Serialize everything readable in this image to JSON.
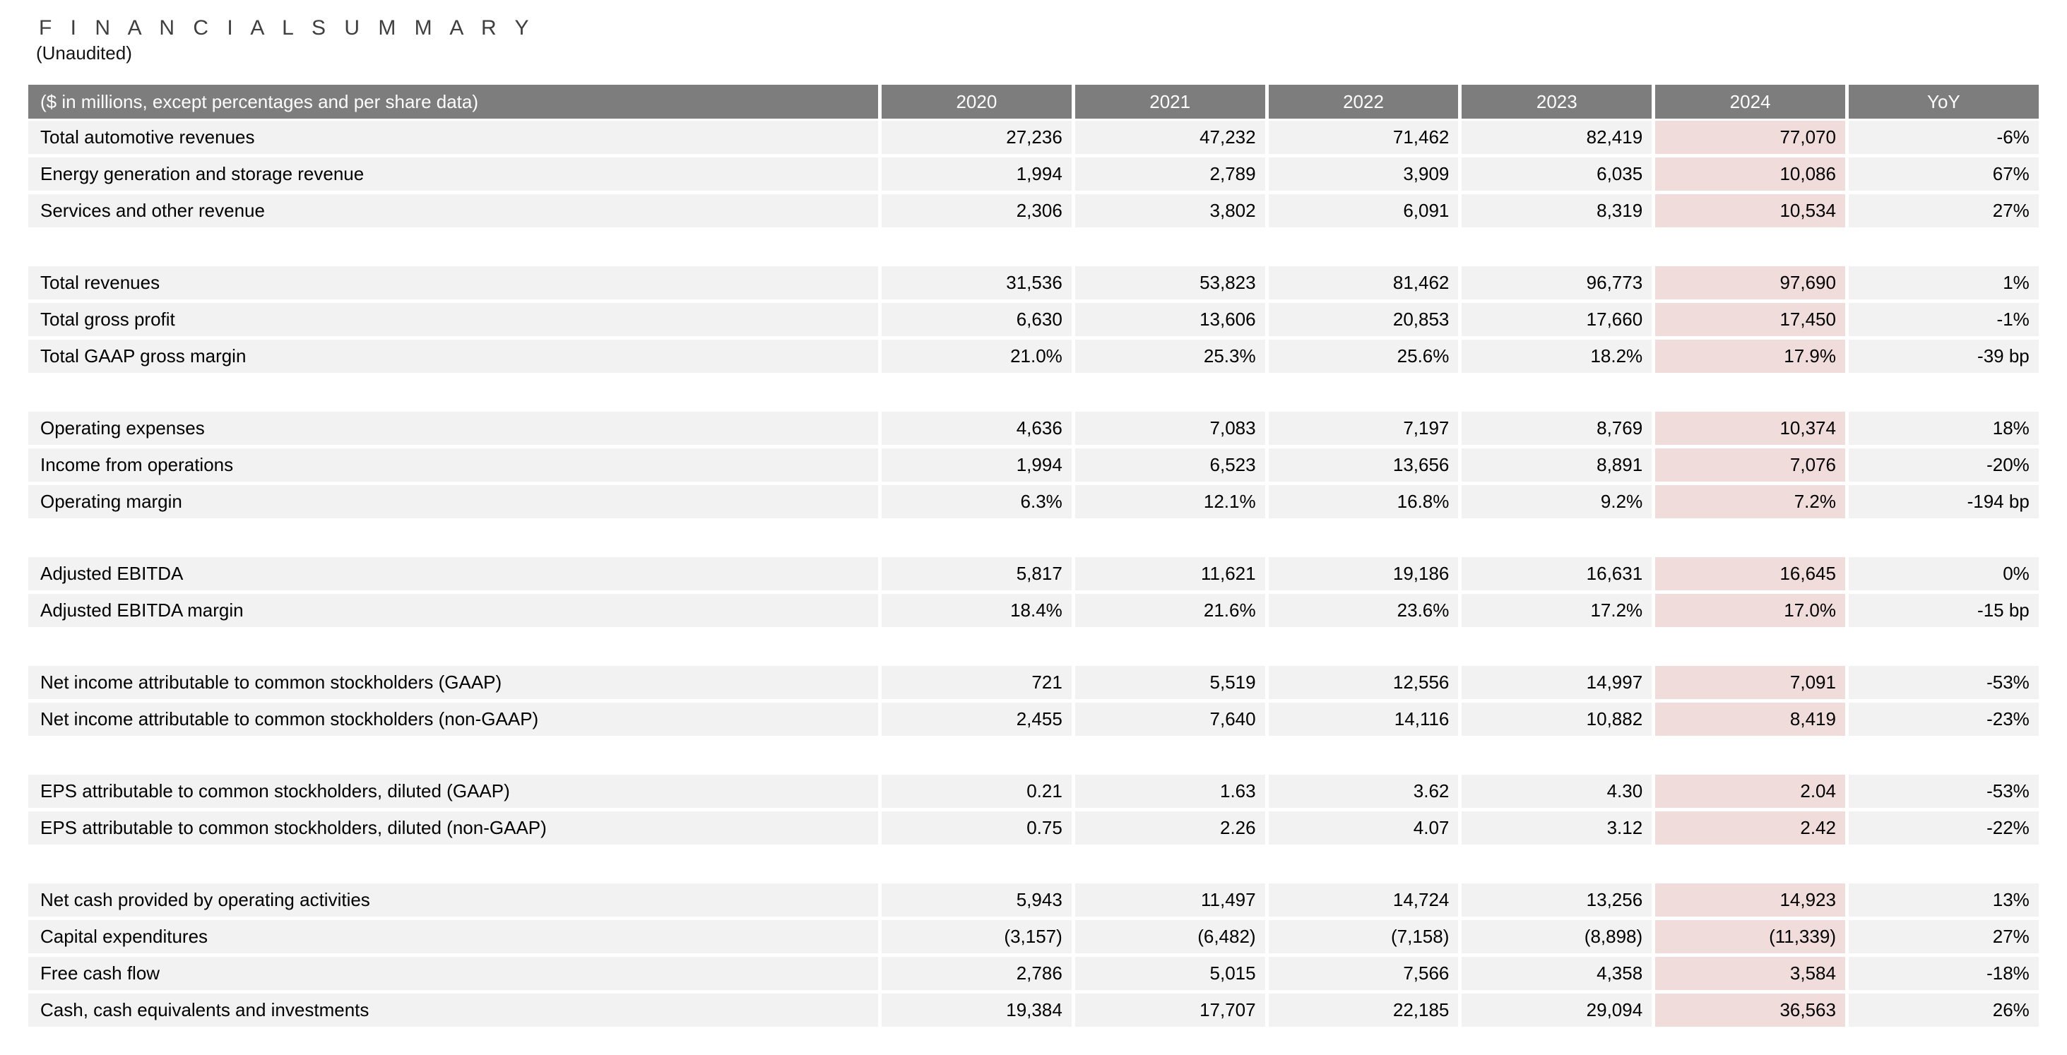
{
  "title": "F I N A N C I A L   S U M M A R Y",
  "subtitle": "(Unaudited)",
  "table": {
    "header_label": "($ in millions, except percentages and per share data)",
    "columns": [
      "2020",
      "2021",
      "2022",
      "2023",
      "2024",
      "YoY"
    ],
    "highlight_column": "2024",
    "colors": {
      "header_bg": "#7d7d7d",
      "header_text": "#ffffff",
      "row_bg": "#f2f2f2",
      "highlight_bg": "#f0dcda",
      "text": "#000000"
    },
    "sections": [
      {
        "rows": [
          {
            "label": "Total automotive revenues",
            "values": [
              "27,236",
              "47,232",
              "71,462",
              "82,419",
              "77,070",
              "-6%"
            ]
          },
          {
            "label": "Energy generation and storage revenue",
            "values": [
              "1,994",
              "2,789",
              "3,909",
              "6,035",
              "10,086",
              "67%"
            ]
          },
          {
            "label": "Services and other revenue",
            "values": [
              "2,306",
              "3,802",
              "6,091",
              "8,319",
              "10,534",
              "27%"
            ]
          }
        ]
      },
      {
        "rows": [
          {
            "label": "Total revenues",
            "values": [
              "31,536",
              "53,823",
              "81,462",
              "96,773",
              "97,690",
              "1%"
            ]
          },
          {
            "label": "Total gross profit",
            "values": [
              "6,630",
              "13,606",
              "20,853",
              "17,660",
              "17,450",
              "-1%"
            ]
          },
          {
            "label": "Total GAAP gross margin",
            "values": [
              "21.0%",
              "25.3%",
              "25.6%",
              "18.2%",
              "17.9%",
              "-39 bp"
            ]
          }
        ]
      },
      {
        "rows": [
          {
            "label": "Operating expenses",
            "values": [
              "4,636",
              "7,083",
              "7,197",
              "8,769",
              "10,374",
              "18%"
            ]
          },
          {
            "label": "Income from operations",
            "values": [
              "1,994",
              "6,523",
              "13,656",
              "8,891",
              "7,076",
              "-20%"
            ]
          },
          {
            "label": "Operating margin",
            "values": [
              "6.3%",
              "12.1%",
              "16.8%",
              "9.2%",
              "7.2%",
              "-194 bp"
            ]
          }
        ]
      },
      {
        "rows": [
          {
            "label": "Adjusted EBITDA",
            "values": [
              "5,817",
              "11,621",
              "19,186",
              "16,631",
              "16,645",
              "0%"
            ]
          },
          {
            "label": "Adjusted EBITDA margin",
            "values": [
              "18.4%",
              "21.6%",
              "23.6%",
              "17.2%",
              "17.0%",
              "-15 bp"
            ]
          }
        ]
      },
      {
        "rows": [
          {
            "label": "Net income attributable to common stockholders (GAAP)",
            "values": [
              "721",
              "5,519",
              "12,556",
              "14,997",
              "7,091",
              "-53%"
            ]
          },
          {
            "label": "Net income attributable to common stockholders (non-GAAP)",
            "values": [
              "2,455",
              "7,640",
              "14,116",
              "10,882",
              "8,419",
              "-23%"
            ]
          }
        ]
      },
      {
        "rows": [
          {
            "label": "EPS attributable to common stockholders, diluted (GAAP)",
            "values": [
              "0.21",
              "1.63",
              "3.62",
              "4.30",
              "2.04",
              "-53%"
            ]
          },
          {
            "label": "EPS attributable to common stockholders, diluted (non-GAAP)",
            "values": [
              "0.75",
              "2.26",
              "4.07",
              "3.12",
              "2.42",
              "-22%"
            ]
          }
        ]
      },
      {
        "rows": [
          {
            "label": "Net cash provided by operating activities",
            "values": [
              "5,943",
              "11,497",
              "14,724",
              "13,256",
              "14,923",
              "13%"
            ]
          },
          {
            "label": "Capital expenditures",
            "values": [
              "(3,157)",
              "(6,482)",
              "(7,158)",
              "(8,898)",
              "(11,339)",
              "27%"
            ]
          },
          {
            "label": "Free cash flow",
            "values": [
              "2,786",
              "5,015",
              "7,566",
              "4,358",
              "3,584",
              "-18%"
            ]
          },
          {
            "label": "Cash, cash equivalents and investments",
            "values": [
              "19,384",
              "17,707",
              "22,185",
              "29,094",
              "36,563",
              "26%"
            ]
          }
        ]
      }
    ]
  }
}
